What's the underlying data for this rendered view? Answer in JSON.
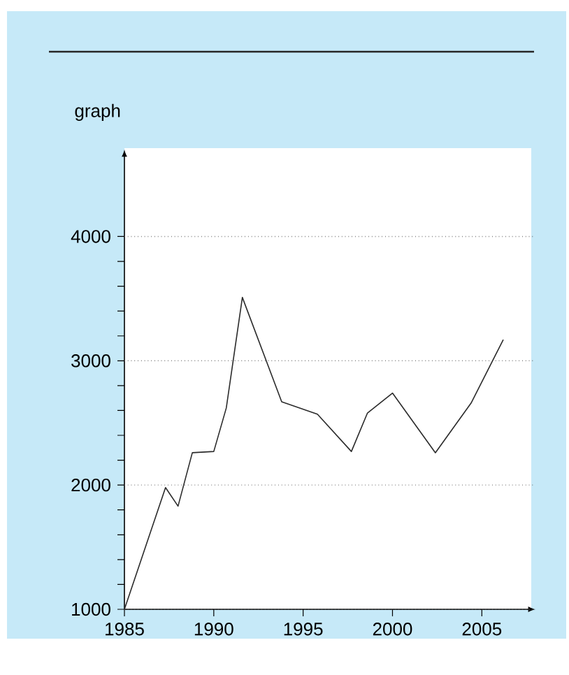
{
  "chart_data": {
    "type": "line",
    "ylabel": "graph",
    "x": [
      1985,
      1987.3,
      1988,
      1988.8,
      1990,
      1990.7,
      1991.6,
      1993.8,
      1995.8,
      1997.7,
      1998.6,
      2000,
      2002.4,
      2004.4,
      2006.2
    ],
    "values": [
      1000,
      1980,
      1830,
      2260,
      2270,
      2620,
      3510,
      2670,
      2570,
      2270,
      2580,
      2740,
      2260,
      2660,
      3170
    ],
    "color": "#2b2b2b",
    "marker": "none",
    "line_style": "solid",
    "grid": "y",
    "xlim": [
      1985,
      2008
    ],
    "ylim": [
      1000,
      4700
    ],
    "xticks": [
      1985,
      1990,
      1995,
      2000,
      2005
    ],
    "yticks": [
      1000,
      {
        "value": 1200,
        "label": null
      },
      {
        "value": 1400,
        "label": null
      },
      {
        "value": 1600,
        "label": null
      },
      {
        "value": 1800,
        "label": null
      },
      2000,
      {
        "value": 2200,
        "label": null
      },
      {
        "value": 2400,
        "label": null
      },
      {
        "value": 2600,
        "label": null
      },
      {
        "value": 2800,
        "label": null
      },
      3000,
      {
        "value": 3200,
        "label": null
      },
      {
        "value": 3400,
        "label": null
      },
      {
        "value": 3600,
        "label": null
      },
      {
        "value": 3800,
        "label": null
      },
      4000
    ]
  }
}
